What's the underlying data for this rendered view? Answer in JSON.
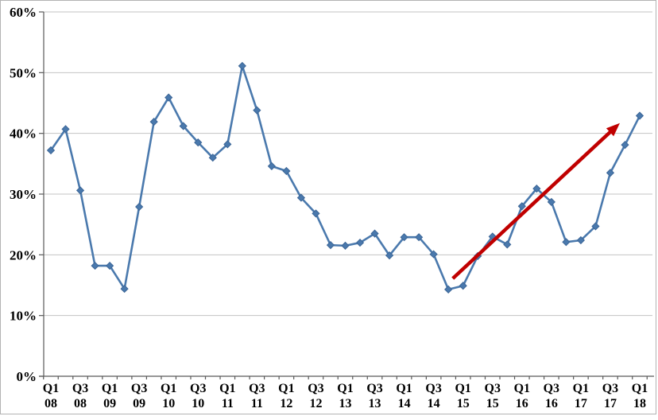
{
  "chart_data": {
    "type": "line",
    "title": "",
    "xlabel": "",
    "ylabel": "",
    "categories": [
      "Q1 08",
      "Q2 08",
      "Q3 08",
      "Q4 08",
      "Q1 09",
      "Q2 09",
      "Q3 09",
      "Q4 09",
      "Q1 10",
      "Q2 10",
      "Q3 10",
      "Q4 10",
      "Q1 11",
      "Q2 11",
      "Q3 11",
      "Q4 11",
      "Q1 12",
      "Q2 12",
      "Q3 12",
      "Q4 12",
      "Q1 13",
      "Q2 13",
      "Q3 13",
      "Q4 13",
      "Q1 14",
      "Q2 14",
      "Q3 14",
      "Q4 14",
      "Q1 15",
      "Q2 15",
      "Q3 15",
      "Q4 15",
      "Q1 16",
      "Q2 16",
      "Q3 16",
      "Q4 16",
      "Q1 17",
      "Q2 17",
      "Q3 17",
      "Q4 17",
      "Q1 18"
    ],
    "values": [
      37.2,
      40.7,
      30.6,
      18.2,
      18.2,
      14.4,
      27.9,
      41.9,
      45.9,
      41.2,
      38.5,
      36.0,
      38.2,
      51.1,
      43.8,
      34.6,
      33.8,
      29.4,
      26.8,
      21.6,
      21.5,
      22.0,
      23.5,
      19.9,
      22.9,
      22.9,
      20.1,
      14.3,
      14.9,
      19.8,
      23.0,
      21.7,
      28.0,
      30.9,
      28.7,
      22.1,
      22.4,
      24.7,
      33.5,
      38.1,
      42.9
    ],
    "x_label_every": 2,
    "ylim": [
      0,
      60
    ],
    "ytick_step": 10,
    "ytick_labels": [
      "0%",
      "10%",
      "20%",
      "30%",
      "40%",
      "50%",
      "60%"
    ],
    "grid": true,
    "legend_position": "none",
    "annotation": {
      "type": "arrow",
      "color": "#c00000",
      "from": {
        "index": 27.3,
        "value": 16.1
      },
      "to": {
        "index": 38.65,
        "value": 41.7
      }
    },
    "colors": {
      "line": "#4a79ad",
      "marker_fill": "#4a79ad",
      "marker_stroke": "#3b6596",
      "arrow": "#c00000",
      "gridline": "#c3c3c3",
      "axis": "#595959",
      "text": "#000000",
      "background": "#ffffff",
      "frame_border": "#b3b3b3"
    }
  }
}
